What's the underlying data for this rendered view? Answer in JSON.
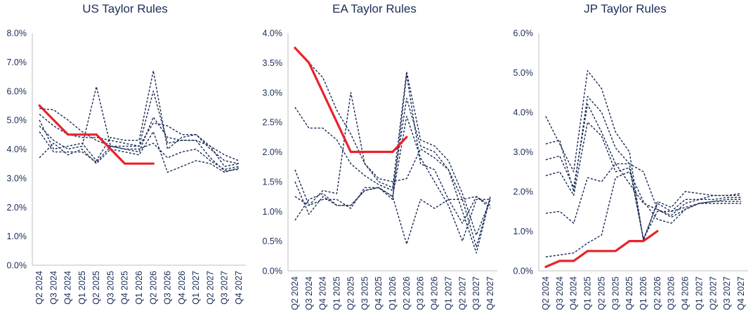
{
  "colors": {
    "policy": "#e8222a",
    "rules": "#1a2d57",
    "axis": "#bfbfbf",
    "text": "#1a2d57"
  },
  "chart_data": [
    {
      "type": "line",
      "title": "US Taylor Rules",
      "ylim": [
        0,
        8
      ],
      "yticks": [
        0,
        1,
        2,
        3,
        4,
        5,
        6,
        7,
        8
      ],
      "ytick_labels": [
        "0.0%",
        "1.0%",
        "2.0%",
        "3.0%",
        "4.0%",
        "5.0%",
        "6.0%",
        "7.0%",
        "8.0%"
      ],
      "categories": [
        "Q2 2024",
        "Q3 2024",
        "Q4 2024",
        "Q1 2025",
        "Q2 2025",
        "Q3 2025",
        "Q4 2025",
        "Q1 2026",
        "Q2 2026",
        "Q3 2026",
        "Q4 2026",
        "Q1 2027",
        "Q2 2027",
        "Q3 2027",
        "Q4 2027"
      ],
      "policy": {
        "values": [
          5.5,
          5.0,
          4.5,
          4.5,
          4.5,
          4.0,
          3.5,
          3.5,
          3.5,
          null,
          null,
          null,
          null,
          null,
          null
        ]
      },
      "rules": [
        {
          "values": [
            5.4,
            5.35,
            5.0,
            4.6,
            4.3,
            4.1,
            4.0,
            4.0,
            4.2,
            3.7,
            3.9,
            4.0,
            3.6,
            3.3,
            3.4
          ]
        },
        {
          "values": [
            5.2,
            4.8,
            4.5,
            4.4,
            4.4,
            4.3,
            4.2,
            4.1,
            6.0,
            4.2,
            4.3,
            4.3,
            4.1,
            3.8,
            3.6
          ]
        },
        {
          "values": [
            5.0,
            4.0,
            4.1,
            4.2,
            3.6,
            4.4,
            4.3,
            4.3,
            6.7,
            4.0,
            4.4,
            4.5,
            4.0,
            3.6,
            3.5
          ]
        },
        {
          "values": [
            4.8,
            4.3,
            4.0,
            4.1,
            6.15,
            4.1,
            4.1,
            4.1,
            4.9,
            4.8,
            4.5,
            4.5,
            4.1,
            3.4,
            3.5
          ]
        },
        {
          "values": [
            4.6,
            3.9,
            3.9,
            3.9,
            3.55,
            4.1,
            4.0,
            3.9,
            5.1,
            4.4,
            4.3,
            4.3,
            3.7,
            3.25,
            3.3
          ]
        },
        {
          "values": [
            3.7,
            4.2,
            3.8,
            4.0,
            3.5,
            4.0,
            3.9,
            3.8,
            4.6,
            3.2,
            3.4,
            3.6,
            3.5,
            3.2,
            3.35
          ]
        }
      ]
    },
    {
      "type": "line",
      "title": "EA Taylor Rules",
      "ylim": [
        0,
        4
      ],
      "yticks": [
        0,
        0.5,
        1,
        1.5,
        2,
        2.5,
        3,
        3.5,
        4
      ],
      "ytick_labels": [
        "0.0%",
        "0.5%",
        "1.0%",
        "1.5%",
        "2.0%",
        "2.5%",
        "3.0%",
        "3.5%",
        "4.0%"
      ],
      "categories": [
        "Q2 2024",
        "Q3 2024",
        "Q4 2024",
        "Q1 2025",
        "Q2 2025",
        "Q3 2025",
        "Q4 2025",
        "Q1 2026",
        "Q2 2026",
        "Q3 2026",
        "Q4 2026",
        "Q1 2027",
        "Q2 2027",
        "Q3 2027",
        "Q4 2027"
      ],
      "policy": {
        "values": [
          3.75,
          3.5,
          3.0,
          2.5,
          2.0,
          2.0,
          2.0,
          2.0,
          2.25,
          null,
          null,
          null,
          null,
          null,
          null
        ]
      },
      "rules": [
        {
          "values": [
            3.75,
            3.5,
            3.25,
            2.7,
            2.3,
            1.8,
            1.5,
            1.4,
            3.35,
            2.2,
            2.1,
            1.85,
            1.3,
            0.6,
            1.2
          ]
        },
        {
          "values": [
            2.75,
            2.4,
            2.4,
            2.2,
            1.8,
            1.6,
            1.45,
            1.35,
            2.9,
            2.1,
            2.0,
            1.7,
            1.2,
            0.4,
            1.25
          ]
        },
        {
          "values": [
            1.7,
            1.1,
            1.35,
            1.3,
            3.0,
            1.8,
            1.55,
            1.5,
            1.55,
            2.05,
            1.9,
            1.7,
            1.0,
            0.3,
            1.25
          ]
        },
        {
          "values": [
            1.25,
            1.1,
            1.2,
            1.2,
            1.05,
            1.4,
            1.4,
            1.2,
            3.3,
            1.8,
            1.7,
            1.2,
            0.8,
            1.25,
            1.05
          ]
        },
        {
          "values": [
            1.5,
            0.95,
            1.25,
            1.1,
            1.1,
            1.35,
            1.4,
            1.25,
            2.6,
            1.9,
            1.5,
            1.1,
            0.5,
            1.2,
            1.2
          ]
        },
        {
          "values": [
            0.85,
            1.2,
            1.3,
            1.1,
            1.1,
            1.35,
            1.4,
            1.25,
            0.45,
            1.2,
            1.05,
            1.2,
            1.2,
            1.25,
            1.1
          ]
        }
      ]
    },
    {
      "type": "line",
      "title": "JP Taylor Rules",
      "ylim": [
        0,
        6
      ],
      "yticks": [
        0,
        1,
        2,
        3,
        4,
        5,
        6
      ],
      "ytick_labels": [
        "0.0%",
        "1.0%",
        "2.0%",
        "3.0%",
        "4.0%",
        "5.0%",
        "6.0%"
      ],
      "categories": [
        "Q2 2024",
        "Q3 2024",
        "Q4 2024",
        "Q1 2025",
        "Q2 2025",
        "Q3 2025",
        "Q4 2025",
        "Q1 2026",
        "Q2 2026",
        "Q3 2026",
        "Q4 2026",
        "Q1 2027",
        "Q2 2027",
        "Q3 2027",
        "Q4 2027"
      ],
      "policy": {
        "values": [
          0.1,
          0.25,
          0.25,
          0.5,
          0.5,
          0.5,
          0.75,
          0.75,
          1.0,
          null,
          null,
          null,
          null,
          null,
          null
        ]
      },
      "rules": [
        {
          "values": [
            3.9,
            3.2,
            2.5,
            5.05,
            4.6,
            3.5,
            3.0,
            0.75,
            1.75,
            1.6,
            2.0,
            1.95,
            1.9,
            1.9,
            1.9
          ]
        },
        {
          "values": [
            3.2,
            3.3,
            2.0,
            4.4,
            4.0,
            3.1,
            2.7,
            0.8,
            1.7,
            1.5,
            1.8,
            1.8,
            1.8,
            1.85,
            1.85
          ]
        },
        {
          "values": [
            2.8,
            2.9,
            2.1,
            4.2,
            3.5,
            2.7,
            2.7,
            2.5,
            1.55,
            1.4,
            1.7,
            1.8,
            1.9,
            1.9,
            1.95
          ]
        },
        {
          "values": [
            2.4,
            2.5,
            1.9,
            3.75,
            3.4,
            2.5,
            2.6,
            0.8,
            1.5,
            1.5,
            1.6,
            1.7,
            1.75,
            1.8,
            1.8
          ]
        },
        {
          "values": [
            1.45,
            1.5,
            1.2,
            2.35,
            2.25,
            2.7,
            2.2,
            1.7,
            1.55,
            1.35,
            1.55,
            1.7,
            1.75,
            1.75,
            1.75
          ]
        },
        {
          "values": [
            0.35,
            0.4,
            0.45,
            0.7,
            0.9,
            2.35,
            2.5,
            1.75,
            1.3,
            1.2,
            1.55,
            1.7,
            1.7,
            1.7,
            1.7
          ]
        }
      ]
    }
  ]
}
